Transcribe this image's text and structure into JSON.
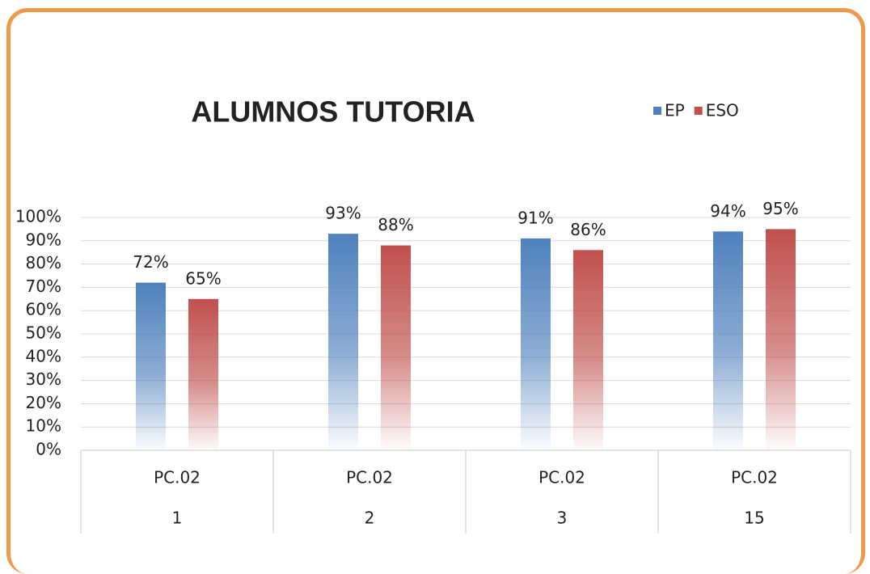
{
  "chart_data": {
    "type": "bar",
    "title": "ALUMNOS TUTORIA",
    "category_groups": [
      "PC.02",
      "PC.02",
      "PC.02",
      "PC.02"
    ],
    "categories": [
      "1",
      "2",
      "3",
      "15"
    ],
    "series": [
      {
        "name": "EP",
        "color": "#4f81bd",
        "values": [
          72,
          93,
          91,
          94
        ],
        "value_labels": [
          "72%",
          "93%",
          "91%",
          "94%"
        ]
      },
      {
        "name": "ESO",
        "color": "#c0504d",
        "values": [
          65,
          88,
          86,
          95
        ],
        "value_labels": [
          "65%",
          "88%",
          "86%",
          "95%"
        ]
      }
    ],
    "ylim": [
      0,
      100
    ],
    "yticks": [
      {
        "value": 0,
        "label": "0%"
      },
      {
        "value": 10,
        "label": "10%"
      },
      {
        "value": 20,
        "label": "20%"
      },
      {
        "value": 30,
        "label": "30%"
      },
      {
        "value": 40,
        "label": "40%"
      },
      {
        "value": 50,
        "label": "50%"
      },
      {
        "value": 60,
        "label": "60%"
      },
      {
        "value": 70,
        "label": "70%"
      },
      {
        "value": 80,
        "label": "80%"
      },
      {
        "value": 90,
        "label": "90%"
      },
      {
        "value": 100,
        "label": "100%"
      }
    ],
    "grid": true,
    "legend": "top-right"
  }
}
